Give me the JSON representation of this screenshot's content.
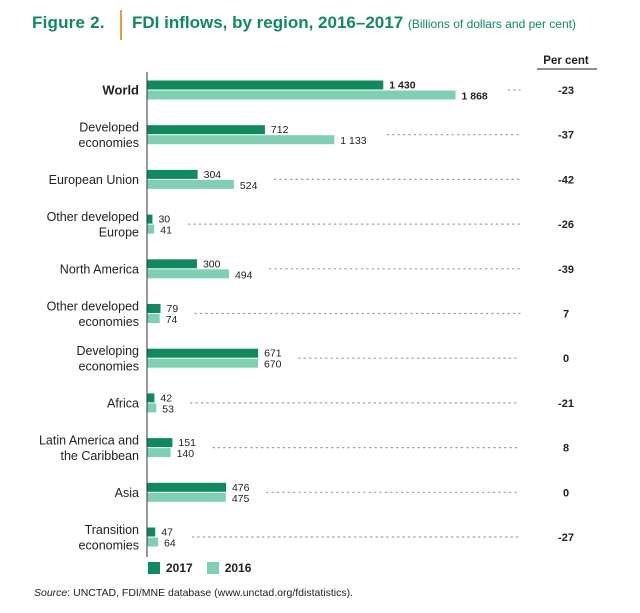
{
  "figure_label": "Figure 2.",
  "title": "FDI inflows, by region, 2016–2017",
  "subtitle": "(Billions of dollars and per cent)",
  "percent_header": "Per cent",
  "source_prefix": "Source",
  "source_text": ": UNCTAD, FDI/MNE database (www.unctad.org/fdistatistics).",
  "colors": {
    "s2017": "#0f8a5f",
    "s2016": "#7fd0b2",
    "title": "#0f8a5f",
    "divider": "#e0a043"
  },
  "chart_data": {
    "type": "bar",
    "orientation": "horizontal",
    "categories": [
      "World",
      "Developed economies",
      "European Union",
      "Other developed Europe",
      "North America",
      "Other developed economies",
      "Developing economies",
      "Africa",
      "Latin America and the Caribbean",
      "Asia",
      "Transition economies"
    ],
    "category_lines": [
      [
        "World"
      ],
      [
        "Developed",
        "economies"
      ],
      [
        "European Union"
      ],
      [
        "Other developed",
        "Europe"
      ],
      [
        "North America"
      ],
      [
        "Other developed",
        "economies"
      ],
      [
        "Developing",
        "economies"
      ],
      [
        "Africa"
      ],
      [
        "Latin America and",
        "the Caribbean"
      ],
      [
        "Asia"
      ],
      [
        "Transition",
        "economies"
      ]
    ],
    "series": [
      {
        "name": "2017",
        "values": [
          1430,
          712,
          304,
          30,
          300,
          79,
          671,
          42,
          151,
          476,
          47
        ],
        "labels": [
          "1 430",
          "712",
          "304",
          "30",
          "300",
          "79",
          "671",
          "42",
          "151",
          "476",
          "47"
        ]
      },
      {
        "name": "2016",
        "values": [
          1868,
          1133,
          524,
          41,
          494,
          74,
          670,
          53,
          140,
          475,
          64
        ],
        "labels": [
          "1 868",
          "1 133",
          "524",
          "41",
          "494",
          "74",
          "670",
          "53",
          "140",
          "475",
          "64"
        ]
      }
    ],
    "percent_change": [
      -23,
      -37,
      -42,
      -26,
      -39,
      7,
      0,
      -21,
      8,
      0,
      -27
    ],
    "percent_labels": [
      "-23",
      "-37",
      "-42",
      "-26",
      "-39",
      "7",
      "0",
      "-21",
      "8",
      "0",
      "-27"
    ],
    "bold_categories": [
      "World"
    ],
    "xlim": [
      0,
      1868
    ],
    "grid": false,
    "legend_position": "bottom-left"
  }
}
